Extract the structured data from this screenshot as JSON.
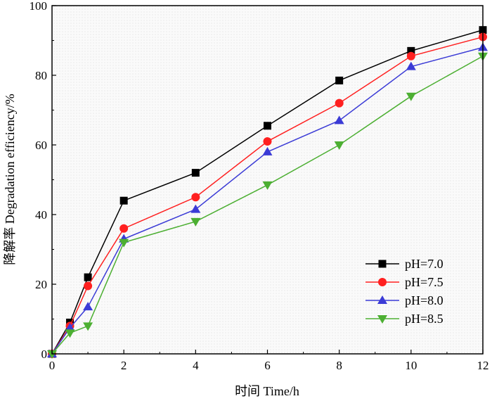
{
  "chart_data": {
    "type": "line",
    "title": "",
    "xlabel": "时间 Time/h",
    "ylabel": "降解率 Degradation efficiency/%",
    "xlim": [
      0,
      12
    ],
    "ylim": [
      0,
      100
    ],
    "xticks": [
      0,
      2,
      4,
      6,
      8,
      10,
      12
    ],
    "yticks": [
      0,
      20,
      40,
      60,
      80,
      100
    ],
    "grid": false,
    "legend_position": "lower-right",
    "x": [
      0,
      0.5,
      1,
      2,
      4,
      6,
      8,
      10,
      12
    ],
    "series": [
      {
        "name": "pH=7.0",
        "color": "#000000",
        "marker": "square",
        "values": [
          0,
          9,
          22,
          44,
          52,
          65.5,
          78.5,
          87,
          93
        ]
      },
      {
        "name": "pH=7.5",
        "color": "#ff2020",
        "marker": "circle",
        "values": [
          0,
          8,
          19.5,
          36,
          45,
          61,
          72,
          85.5,
          91
        ]
      },
      {
        "name": "pH=8.0",
        "color": "#3b3bd6",
        "marker": "triangle-up",
        "values": [
          0,
          7.5,
          13.5,
          33,
          41.5,
          58,
          67,
          82.5,
          88
        ]
      },
      {
        "name": "pH=8.5",
        "color": "#4caf32",
        "marker": "triangle-down",
        "values": [
          0,
          6,
          8,
          32,
          38,
          48.5,
          60,
          74,
          85.5
        ]
      }
    ]
  }
}
